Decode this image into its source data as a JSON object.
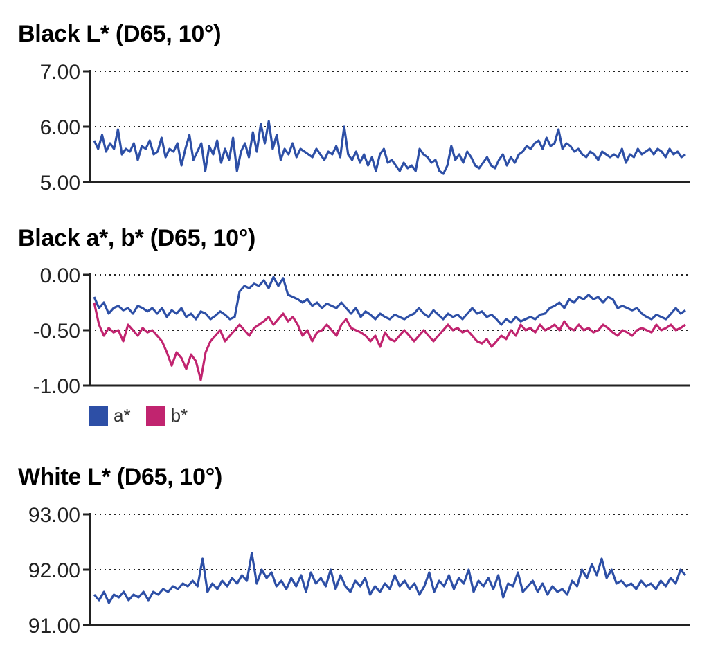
{
  "chart_data": [
    {
      "type": "line",
      "title": "Black L* (D65, 10°)",
      "ylim": [
        5.0,
        7.0
      ],
      "yticks": [
        "7.00",
        "6.00",
        "5.00"
      ],
      "grid": "dotted horizontal",
      "series": [
        {
          "color": "#2d4fa6",
          "values": [
            5.75,
            5.6,
            5.85,
            5.55,
            5.7,
            5.6,
            5.95,
            5.5,
            5.6,
            5.55,
            5.7,
            5.4,
            5.65,
            5.6,
            5.75,
            5.5,
            5.55,
            5.8,
            5.45,
            5.6,
            5.55,
            5.7,
            5.3,
            5.6,
            5.85,
            5.4,
            5.55,
            5.7,
            5.2,
            5.65,
            5.5,
            5.75,
            5.35,
            5.6,
            5.4,
            5.8,
            5.2,
            5.55,
            5.7,
            5.45,
            5.9,
            5.55,
            6.05,
            5.7,
            6.1,
            5.6,
            5.85,
            5.4,
            5.6,
            5.5,
            5.7,
            5.45,
            5.6,
            5.55,
            5.5,
            5.45,
            5.6,
            5.5,
            5.4,
            5.55,
            5.5,
            5.65,
            5.45,
            6.0,
            5.5,
            5.4,
            5.55,
            5.35,
            5.5,
            5.3,
            5.45,
            5.2,
            5.5,
            5.6,
            5.35,
            5.4,
            5.3,
            5.2,
            5.35,
            5.25,
            5.3,
            5.2,
            5.6,
            5.5,
            5.45,
            5.35,
            5.4,
            5.2,
            5.15,
            5.3,
            5.65,
            5.4,
            5.5,
            5.35,
            5.55,
            5.45,
            5.3,
            5.25,
            5.35,
            5.45,
            5.3,
            5.25,
            5.4,
            5.5,
            5.3,
            5.45,
            5.35,
            5.5,
            5.55,
            5.65,
            5.6,
            5.7,
            5.75,
            5.6,
            5.8,
            5.65,
            5.7,
            5.95,
            5.6,
            5.7,
            5.65,
            5.55,
            5.6,
            5.5,
            5.45,
            5.55,
            5.5,
            5.4,
            5.55,
            5.5,
            5.45,
            5.5,
            5.45,
            5.6,
            5.35,
            5.5,
            5.45,
            5.6,
            5.5,
            5.55,
            5.6,
            5.5,
            5.6,
            5.55,
            5.45,
            5.6,
            5.5,
            5.55,
            5.45,
            5.5
          ]
        }
      ]
    },
    {
      "type": "line",
      "title": "Black a*, b* (D65, 10°)",
      "ylim": [
        -1.0,
        0.0
      ],
      "yticks": [
        "0.00",
        "-0.50",
        "-1.00"
      ],
      "grid": "dotted horizontal",
      "legend": "bottom-left",
      "series": [
        {
          "name": "a*",
          "color": "#2d4fa6",
          "values": [
            -0.2,
            -0.3,
            -0.25,
            -0.35,
            -0.3,
            -0.28,
            -0.32,
            -0.3,
            -0.35,
            -0.28,
            -0.3,
            -0.33,
            -0.3,
            -0.35,
            -0.3,
            -0.38,
            -0.32,
            -0.35,
            -0.3,
            -0.38,
            -0.35,
            -0.4,
            -0.33,
            -0.35,
            -0.4,
            -0.37,
            -0.33,
            -0.36,
            -0.4,
            -0.38,
            -0.15,
            -0.1,
            -0.12,
            -0.08,
            -0.1,
            -0.05,
            -0.12,
            -0.02,
            -0.1,
            -0.03,
            -0.18,
            -0.2,
            -0.22,
            -0.25,
            -0.22,
            -0.28,
            -0.25,
            -0.3,
            -0.26,
            -0.28,
            -0.3,
            -0.25,
            -0.3,
            -0.35,
            -0.3,
            -0.38,
            -0.33,
            -0.36,
            -0.4,
            -0.35,
            -0.38,
            -0.4,
            -0.36,
            -0.38,
            -0.4,
            -0.37,
            -0.35,
            -0.3,
            -0.35,
            -0.38,
            -0.32,
            -0.36,
            -0.4,
            -0.35,
            -0.38,
            -0.36,
            -0.4,
            -0.35,
            -0.3,
            -0.35,
            -0.33,
            -0.38,
            -0.36,
            -0.4,
            -0.45,
            -0.4,
            -0.43,
            -0.38,
            -0.42,
            -0.4,
            -0.38,
            -0.4,
            -0.36,
            -0.35,
            -0.3,
            -0.28,
            -0.25,
            -0.3,
            -0.22,
            -0.25,
            -0.2,
            -0.22,
            -0.18,
            -0.22,
            -0.2,
            -0.25,
            -0.2,
            -0.22,
            -0.3,
            -0.28,
            -0.3,
            -0.32,
            -0.3,
            -0.35,
            -0.38,
            -0.4,
            -0.36,
            -0.38,
            -0.4,
            -0.35,
            -0.3,
            -0.35,
            -0.32
          ]
        },
        {
          "name": "b*",
          "color": "#c1246f",
          "values": [
            -0.25,
            -0.45,
            -0.55,
            -0.48,
            -0.52,
            -0.5,
            -0.6,
            -0.45,
            -0.5,
            -0.55,
            -0.48,
            -0.52,
            -0.5,
            -0.55,
            -0.6,
            -0.7,
            -0.82,
            -0.7,
            -0.75,
            -0.85,
            -0.72,
            -0.78,
            -0.95,
            -0.7,
            -0.6,
            -0.55,
            -0.5,
            -0.6,
            -0.55,
            -0.5,
            -0.45,
            -0.5,
            -0.55,
            -0.48,
            -0.45,
            -0.42,
            -0.38,
            -0.45,
            -0.4,
            -0.35,
            -0.42,
            -0.38,
            -0.45,
            -0.55,
            -0.5,
            -0.6,
            -0.52,
            -0.5,
            -0.45,
            -0.5,
            -0.55,
            -0.45,
            -0.4,
            -0.48,
            -0.5,
            -0.52,
            -0.55,
            -0.6,
            -0.55,
            -0.65,
            -0.52,
            -0.58,
            -0.6,
            -0.55,
            -0.5,
            -0.55,
            -0.6,
            -0.55,
            -0.5,
            -0.55,
            -0.6,
            -0.55,
            -0.5,
            -0.45,
            -0.5,
            -0.48,
            -0.52,
            -0.5,
            -0.55,
            -0.6,
            -0.62,
            -0.58,
            -0.65,
            -0.6,
            -0.55,
            -0.58,
            -0.5,
            -0.55,
            -0.45,
            -0.5,
            -0.48,
            -0.52,
            -0.45,
            -0.5,
            -0.48,
            -0.45,
            -0.5,
            -0.42,
            -0.48,
            -0.5,
            -0.45,
            -0.5,
            -0.48,
            -0.52,
            -0.5,
            -0.45,
            -0.48,
            -0.52,
            -0.55,
            -0.5,
            -0.52,
            -0.55,
            -0.5,
            -0.48,
            -0.5,
            -0.52,
            -0.45,
            -0.5,
            -0.48,
            -0.45,
            -0.5,
            -0.48,
            -0.45
          ]
        }
      ]
    },
    {
      "type": "line",
      "title": "White L* (D65, 10°)",
      "ylim": [
        91.0,
        93.0
      ],
      "yticks": [
        "93.00",
        "92.00",
        "91.00"
      ],
      "grid": "dotted horizontal",
      "series": [
        {
          "color": "#2d4fa6",
          "values": [
            91.55,
            91.45,
            91.6,
            91.4,
            91.55,
            91.5,
            91.6,
            91.45,
            91.55,
            91.5,
            91.6,
            91.45,
            91.6,
            91.55,
            91.65,
            91.6,
            91.7,
            91.65,
            91.75,
            91.7,
            91.8,
            91.7,
            92.2,
            91.6,
            91.75,
            91.65,
            91.8,
            91.7,
            91.85,
            91.75,
            91.9,
            91.8,
            92.3,
            91.75,
            92.0,
            91.85,
            91.95,
            91.7,
            91.8,
            91.65,
            91.85,
            91.7,
            91.9,
            91.6,
            91.95,
            91.75,
            91.85,
            91.7,
            92.0,
            91.65,
            91.9,
            91.7,
            91.6,
            91.8,
            91.7,
            91.85,
            91.55,
            91.7,
            91.6,
            91.75,
            91.65,
            91.9,
            91.7,
            91.8,
            91.65,
            91.75,
            91.55,
            91.7,
            91.95,
            91.6,
            91.8,
            91.7,
            91.9,
            91.65,
            91.85,
            91.75,
            92.0,
            91.6,
            91.8,
            91.7,
            91.85,
            91.65,
            91.9,
            91.5,
            91.75,
            91.7,
            91.95,
            91.6,
            91.7,
            91.8,
            91.6,
            91.75,
            91.55,
            91.7,
            91.6,
            91.65,
            91.55,
            91.8,
            91.7,
            92.0,
            91.85,
            92.1,
            91.9,
            92.2,
            91.85,
            92.0,
            91.75,
            91.8,
            91.7,
            91.75,
            91.65,
            91.8,
            91.7,
            91.75,
            91.65,
            91.8,
            91.7,
            91.85,
            91.75,
            92.0,
            91.9
          ]
        }
      ]
    }
  ]
}
